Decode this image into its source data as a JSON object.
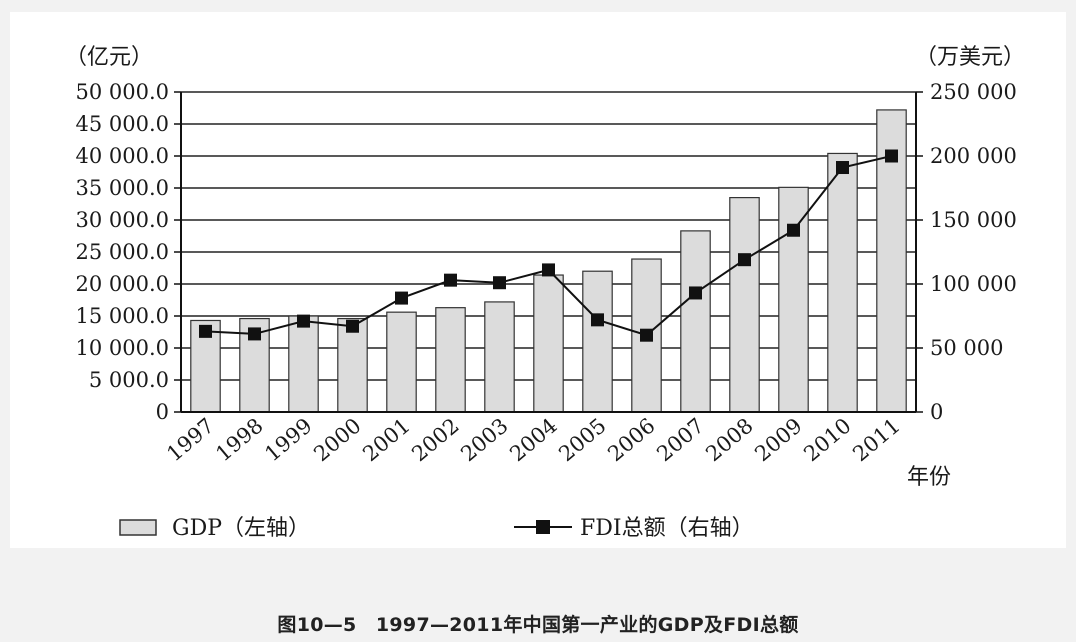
{
  "caption": "图10—5　1997—2011年中国第一产业的GDP及FDI总额",
  "chart_data": {
    "type": "bar",
    "categories": [
      "1997",
      "1998",
      "1999",
      "2000",
      "2001",
      "2002",
      "2003",
      "2004",
      "2005",
      "2006",
      "2007",
      "2008",
      "2009",
      "2010",
      "2011"
    ],
    "series": [
      {
        "name": "GDP（左轴）",
        "type": "bar",
        "axis": "left",
        "values": [
          14300,
          14600,
          15000,
          14600,
          15600,
          16300,
          17200,
          21400,
          22000,
          23900,
          28300,
          33500,
          35100,
          40400,
          47200
        ]
      },
      {
        "name": "FDI总额（右轴）",
        "type": "line",
        "axis": "right",
        "values": [
          63000,
          61000,
          71000,
          67000,
          89000,
          103000,
          101000,
          111000,
          72000,
          60000,
          93000,
          119000,
          142000,
          191000,
          200000
        ]
      }
    ],
    "left_axis": {
      "unit": "（亿元）",
      "ylim": [
        0,
        50000
      ],
      "ticks": [
        "0",
        "5 000.0",
        "10 000.0",
        "15 000.0",
        "20 000.0",
        "25 000.0",
        "30 000.0",
        "35 000.0",
        "40 000.0",
        "45 000.0",
        "50 000.0"
      ]
    },
    "right_axis": {
      "unit": "（万美元）",
      "ylim": [
        0,
        250000
      ],
      "ticks": [
        "0",
        "50 000",
        "100 000",
        "150 000",
        "200 000",
        "250 000"
      ]
    },
    "xlabel": "年份",
    "grid": true,
    "legend_placement": "bottom",
    "colors": {
      "bar_fill": "#dcdcdc",
      "bar_stroke": "#333333",
      "line": "#111111",
      "grid": "#222222"
    }
  }
}
